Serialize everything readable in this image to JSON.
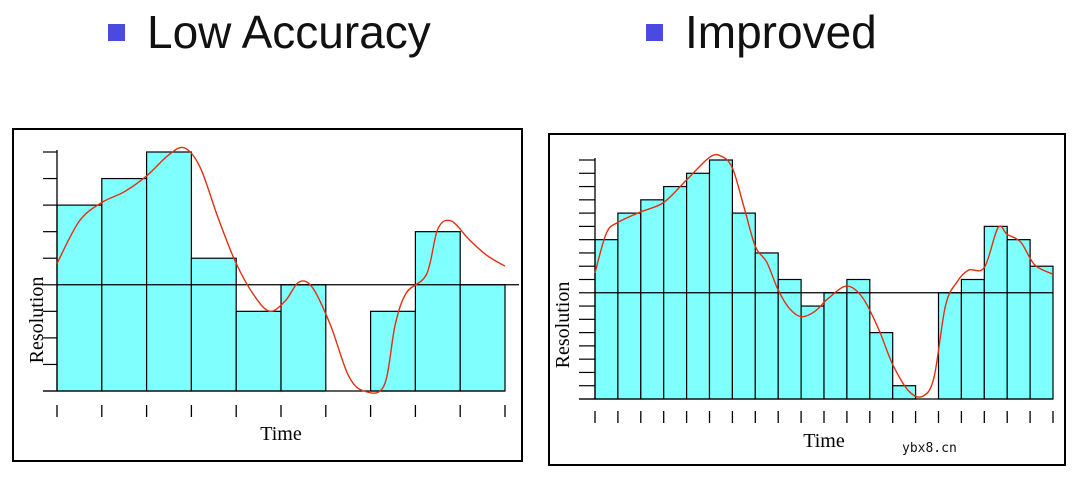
{
  "titles": {
    "left": "Low Accuracy",
    "right": "Improved",
    "bullet_color": "#4a4ae0"
  },
  "watermark": "ybx8.cn",
  "chart_data": [
    {
      "type": "bar",
      "title": "Low Accuracy",
      "xlabel": "Time",
      "ylabel": "Resolution",
      "x_tick_count": 11,
      "y_tick_count": 10,
      "ylim": [
        0,
        9
      ],
      "values": [
        7,
        8,
        9,
        5,
        3,
        4,
        0,
        3,
        6,
        4
      ],
      "threshold": 4,
      "bar_color": "#80ffff",
      "curve_color": "#e03010",
      "curve": [
        [
          0.0,
          4.8
        ],
        [
          0.5,
          6.4
        ],
        [
          1.0,
          7.1
        ],
        [
          1.5,
          7.5
        ],
        [
          2.0,
          8.1
        ],
        [
          2.5,
          8.9
        ],
        [
          2.85,
          9.15
        ],
        [
          3.2,
          8.4
        ],
        [
          3.6,
          6.5
        ],
        [
          4.0,
          4.8
        ],
        [
          4.4,
          3.6
        ],
        [
          4.75,
          3.0
        ],
        [
          5.1,
          3.4
        ],
        [
          5.4,
          4.1
        ],
        [
          5.7,
          3.9
        ],
        [
          6.1,
          2.5
        ],
        [
          6.5,
          0.6
        ],
        [
          6.85,
          0.0
        ],
        [
          7.3,
          0.2
        ],
        [
          7.55,
          2.5
        ],
        [
          7.8,
          3.7
        ],
        [
          8.25,
          4.4
        ],
        [
          8.5,
          6.1
        ],
        [
          8.8,
          6.4
        ],
        [
          9.2,
          5.7
        ],
        [
          9.6,
          5.1
        ],
        [
          10.0,
          4.7
        ]
      ]
    },
    {
      "type": "bar",
      "title": "Improved",
      "xlabel": "Time",
      "ylabel": "Resolution",
      "x_tick_count": 21,
      "y_tick_count": 19,
      "ylim": [
        0,
        18
      ],
      "values": [
        12,
        14,
        15,
        16,
        17,
        18,
        14,
        11,
        9,
        7,
        8,
        9,
        5,
        1,
        0,
        8,
        9,
        13,
        12,
        10
      ],
      "threshold": 8,
      "bar_color": "#80ffff",
      "curve_color": "#e03010",
      "curve": [
        [
          0.0,
          9.5
        ],
        [
          0.5,
          12.5
        ],
        [
          1.0,
          13.3
        ],
        [
          2.0,
          14.1
        ],
        [
          3.0,
          14.8
        ],
        [
          4.0,
          16.5
        ],
        [
          5.0,
          18.2
        ],
        [
          5.5,
          18.3
        ],
        [
          6.0,
          17.4
        ],
        [
          6.5,
          14.5
        ],
        [
          7.0,
          11.5
        ],
        [
          7.5,
          10.3
        ],
        [
          8.0,
          8.2
        ],
        [
          8.5,
          6.8
        ],
        [
          9.0,
          6.2
        ],
        [
          9.6,
          6.6
        ],
        [
          10.2,
          7.6
        ],
        [
          11.0,
          8.5
        ],
        [
          11.7,
          7.6
        ],
        [
          12.4,
          5.2
        ],
        [
          13.0,
          2.6
        ],
        [
          13.7,
          0.6
        ],
        [
          14.3,
          0.2
        ],
        [
          14.8,
          1.6
        ],
        [
          15.3,
          7.0
        ],
        [
          15.8,
          8.8
        ],
        [
          16.3,
          9.7
        ],
        [
          17.0,
          9.9
        ],
        [
          17.6,
          12.9
        ],
        [
          18.0,
          12.4
        ],
        [
          18.6,
          11.8
        ],
        [
          19.2,
          10.1
        ],
        [
          20.0,
          9.4
        ]
      ]
    }
  ]
}
